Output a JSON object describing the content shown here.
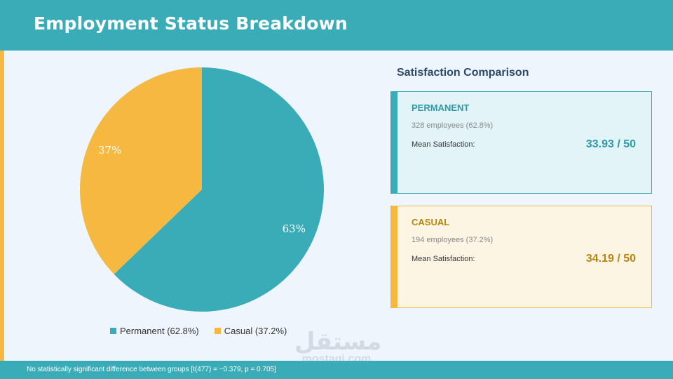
{
  "header": {
    "title": "Employment Status Breakdown"
  },
  "chart_data": {
    "type": "pie",
    "title": "",
    "slices": [
      {
        "name": "Permanent",
        "value": 62.8,
        "label": "63%",
        "legend": "Permanent (62.8%)",
        "color": "#3aacb8"
      },
      {
        "name": "Casual",
        "value": 37.2,
        "label": "37%",
        "legend": "Casual (37.2%)",
        "color": "#f5b942"
      }
    ],
    "legend_placement": "bottom"
  },
  "comparison": {
    "title": "Satisfaction Comparison",
    "cards": [
      {
        "name": "PERMANENT",
        "count": "328 employees  (62.8%)",
        "mean_label": "Mean Satisfaction:",
        "mean_value": "33.93 / 50",
        "accent": "#3aacb8",
        "text_color": "#2c9aa7",
        "bg": "#e2f4f8"
      },
      {
        "name": "CASUAL",
        "count": "194 employees  (37.2%)",
        "mean_label": "Mean Satisfaction:",
        "mean_value": "34.19 / 50",
        "accent": "#f5b942",
        "text_color": "#b8860b",
        "bg": "#fdf5e4"
      }
    ]
  },
  "footer": {
    "note": "No statistically significant difference between groups  [t(477) = −0.379, p = 0.705]"
  },
  "watermark": {
    "arabic": "مستقل",
    "latin": "mostaqi.com"
  }
}
